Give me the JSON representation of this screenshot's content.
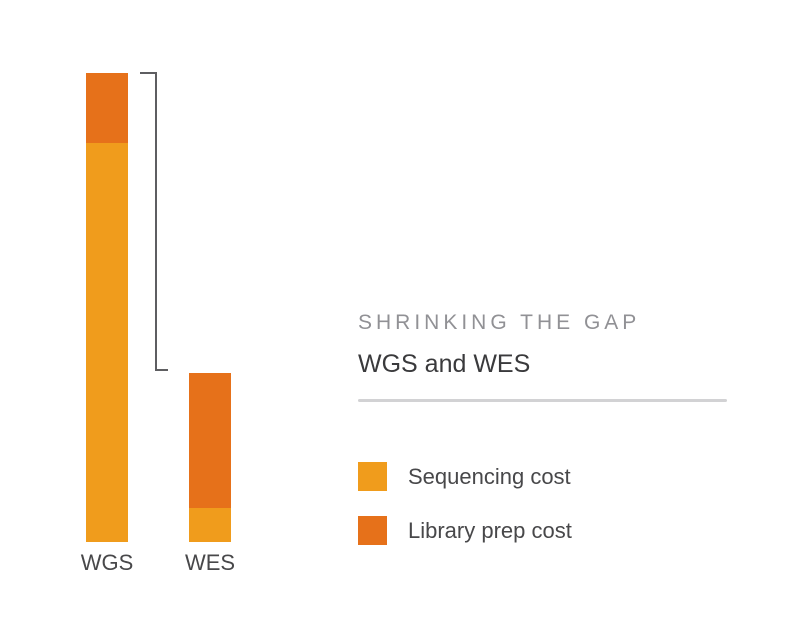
{
  "header": {
    "title": "SHRINKING THE GAP",
    "subtitle": "WGS and WES"
  },
  "chart_data": {
    "type": "bar",
    "stacked": true,
    "categories": [
      "WGS",
      "WES"
    ],
    "series": [
      {
        "name": "Sequencing cost",
        "color": "#F09C1C",
        "values": [
          399,
          34
        ]
      },
      {
        "name": "Library prep cost",
        "color": "#E6711A",
        "values": [
          70,
          135
        ]
      }
    ],
    "value_units": "relative height (px, no numeric axis shown)",
    "totals": {
      "WGS": 469,
      "WES": 169
    },
    "axes": "none",
    "grid": false,
    "legend_position": "right panel below divider",
    "annotation": "bracket linking top of WGS bar to top of WES bar, indicating the gap",
    "bracket_color": "#5E5E61"
  }
}
